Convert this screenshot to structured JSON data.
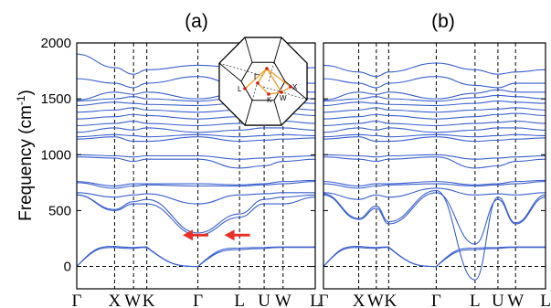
{
  "colors": {
    "band": "#3a5fcd",
    "arrow": "#e8302a",
    "bz_path": "#f0a030",
    "bz_point": "#d01818"
  },
  "chart_data": [
    {
      "type": "line",
      "title": "(a)",
      "ylabel": "Frequency (cm",
      "ylabel_sup": "-1",
      "ylabel_close": ")",
      "ylim": [
        -200,
        2000
      ],
      "yticks": [
        "0",
        "500",
        "1000",
        "1500",
        "2000"
      ],
      "ytick_values": [
        0,
        500,
        1000,
        1500,
        2000
      ],
      "x_ticks": [
        "Γ",
        "X",
        "W",
        "K",
        "Γ",
        "L",
        "U",
        "W",
        "L"
      ],
      "x_tick_positions": [
        0,
        1,
        1.5,
        1.85,
        3.2,
        4.3,
        4.95,
        5.45,
        6.3
      ],
      "x_range": [
        0,
        6.3
      ],
      "grid": "dashed verticals at high-symmetry points, dashed line at 0",
      "inset_labels": [
        "Γ",
        "L",
        "K",
        "W",
        "X"
      ],
      "annotations": [
        {
          "type": "arrow",
          "x": 2.8,
          "y": 280,
          "direction": "left"
        },
        {
          "type": "arrow",
          "x": 3.9,
          "y": 280,
          "direction": "left"
        }
      ],
      "series": [
        {
          "kind": "acoustic",
          "values": [
            0,
            170,
            160,
            170,
            0,
            150,
            160,
            170,
            170
          ]
        },
        {
          "kind": "acoustic",
          "values": [
            0,
            180,
            170,
            175,
            0,
            165,
            170,
            175,
            175
          ]
        },
        {
          "values": [
            640,
            500,
            560,
            560,
            280,
            440,
            560,
            560,
            620
          ]
        },
        {
          "values": [
            640,
            510,
            580,
            600,
            300,
            470,
            600,
            620,
            640
          ]
        },
        {
          "values": [
            660,
            620,
            640,
            650,
            560,
            640,
            650,
            660,
            660
          ]
        },
        {
          "values": [
            750,
            700,
            720,
            730,
            720,
            720,
            730,
            740,
            760
          ]
        },
        {
          "values": [
            760,
            720,
            740,
            740,
            740,
            730,
            740,
            760,
            770
          ]
        },
        {
          "values": [
            980,
            970,
            940,
            960,
            960,
            880,
            900,
            940,
            960
          ]
        },
        {
          "values": [
            1000,
            990,
            980,
            990,
            990,
            960,
            970,
            980,
            990
          ]
        },
        {
          "values": [
            1140,
            1160,
            1120,
            1120,
            1160,
            1120,
            1130,
            1140,
            1150
          ]
        },
        {
          "values": [
            1160,
            1180,
            1170,
            1160,
            1180,
            1160,
            1170,
            1180,
            1170
          ]
        },
        {
          "values": [
            1200,
            1240,
            1220,
            1240,
            1200,
            1220,
            1240,
            1240,
            1220
          ]
        },
        {
          "values": [
            1260,
            1280,
            1300,
            1280,
            1260,
            1280,
            1290,
            1300,
            1280
          ]
        },
        {
          "values": [
            1320,
            1340,
            1360,
            1350,
            1320,
            1340,
            1360,
            1370,
            1350
          ]
        },
        {
          "values": [
            1380,
            1400,
            1420,
            1400,
            1380,
            1400,
            1410,
            1420,
            1400
          ]
        },
        {
          "values": [
            1440,
            1470,
            1460,
            1450,
            1440,
            1460,
            1480,
            1470,
            1460
          ]
        },
        {
          "values": [
            1480,
            1500,
            1520,
            1500,
            1480,
            1510,
            1530,
            1520,
            1500
          ]
        },
        {
          "values": [
            1490,
            1560,
            1540,
            1560,
            1500,
            1550,
            1580,
            1560,
            1560
          ]
        },
        {
          "values": [
            1680,
            1640,
            1600,
            1640,
            1700,
            1620,
            1600,
            1640,
            1640
          ]
        },
        {
          "values": [
            1900,
            1780,
            1720,
            1760,
            1800,
            1780,
            1740,
            1760,
            1780
          ]
        }
      ]
    },
    {
      "type": "line",
      "title": "(b)",
      "ylim": [
        -200,
        2000
      ],
      "x_ticks": [
        "Γ",
        "X",
        "W",
        "K",
        "Γ",
        "L",
        "U",
        "W",
        "L"
      ],
      "x_tick_positions": [
        0,
        1,
        1.5,
        1.85,
        3.2,
        4.3,
        4.95,
        5.45,
        6.3
      ],
      "x_range": [
        0,
        6.3
      ],
      "series": [
        {
          "kind": "acoustic",
          "values": [
            0,
            170,
            160,
            170,
            0,
            150,
            160,
            170,
            170
          ]
        },
        {
          "kind": "acoustic",
          "values": [
            0,
            180,
            170,
            175,
            0,
            165,
            170,
            175,
            175
          ]
        },
        {
          "kind": "soft",
          "values": [
            640,
            420,
            520,
            380,
            660,
            200,
            600,
            380,
            620
          ]
        },
        {
          "kind": "soft",
          "values": [
            650,
            430,
            540,
            400,
            680,
            -120,
            620,
            390,
            640
          ]
        },
        {
          "values": [
            660,
            600,
            640,
            620,
            700,
            640,
            650,
            640,
            660
          ]
        },
        {
          "values": [
            740,
            700,
            720,
            730,
            740,
            720,
            730,
            740,
            760
          ]
        },
        {
          "values": [
            760,
            720,
            740,
            740,
            760,
            730,
            740,
            760,
            770
          ]
        },
        {
          "values": [
            980,
            960,
            940,
            960,
            980,
            880,
            900,
            940,
            960
          ]
        },
        {
          "values": [
            1000,
            990,
            980,
            990,
            1000,
            960,
            970,
            980,
            990
          ]
        },
        {
          "values": [
            1140,
            1160,
            1120,
            1120,
            1160,
            1120,
            1130,
            1140,
            1150
          ]
        },
        {
          "values": [
            1160,
            1180,
            1170,
            1160,
            1180,
            1160,
            1170,
            1180,
            1170
          ]
        },
        {
          "values": [
            1200,
            1240,
            1220,
            1240,
            1200,
            1220,
            1240,
            1240,
            1220
          ]
        },
        {
          "values": [
            1260,
            1280,
            1300,
            1280,
            1260,
            1280,
            1290,
            1300,
            1280
          ]
        },
        {
          "values": [
            1320,
            1340,
            1360,
            1350,
            1320,
            1340,
            1360,
            1370,
            1350
          ]
        },
        {
          "values": [
            1380,
            1400,
            1420,
            1400,
            1380,
            1400,
            1410,
            1420,
            1400
          ]
        },
        {
          "values": [
            1440,
            1470,
            1460,
            1450,
            1440,
            1460,
            1480,
            1470,
            1460
          ]
        },
        {
          "values": [
            1480,
            1500,
            1520,
            1500,
            1480,
            1510,
            1530,
            1520,
            1500
          ]
        },
        {
          "values": [
            1490,
            1560,
            1540,
            1560,
            1500,
            1550,
            1580,
            1560,
            1560
          ]
        },
        {
          "values": [
            1680,
            1640,
            1600,
            1640,
            1700,
            1620,
            1600,
            1640,
            1640
          ]
        },
        {
          "values": [
            1800,
            1740,
            1700,
            1740,
            1820,
            1760,
            1720,
            1740,
            1760
          ]
        }
      ]
    }
  ]
}
